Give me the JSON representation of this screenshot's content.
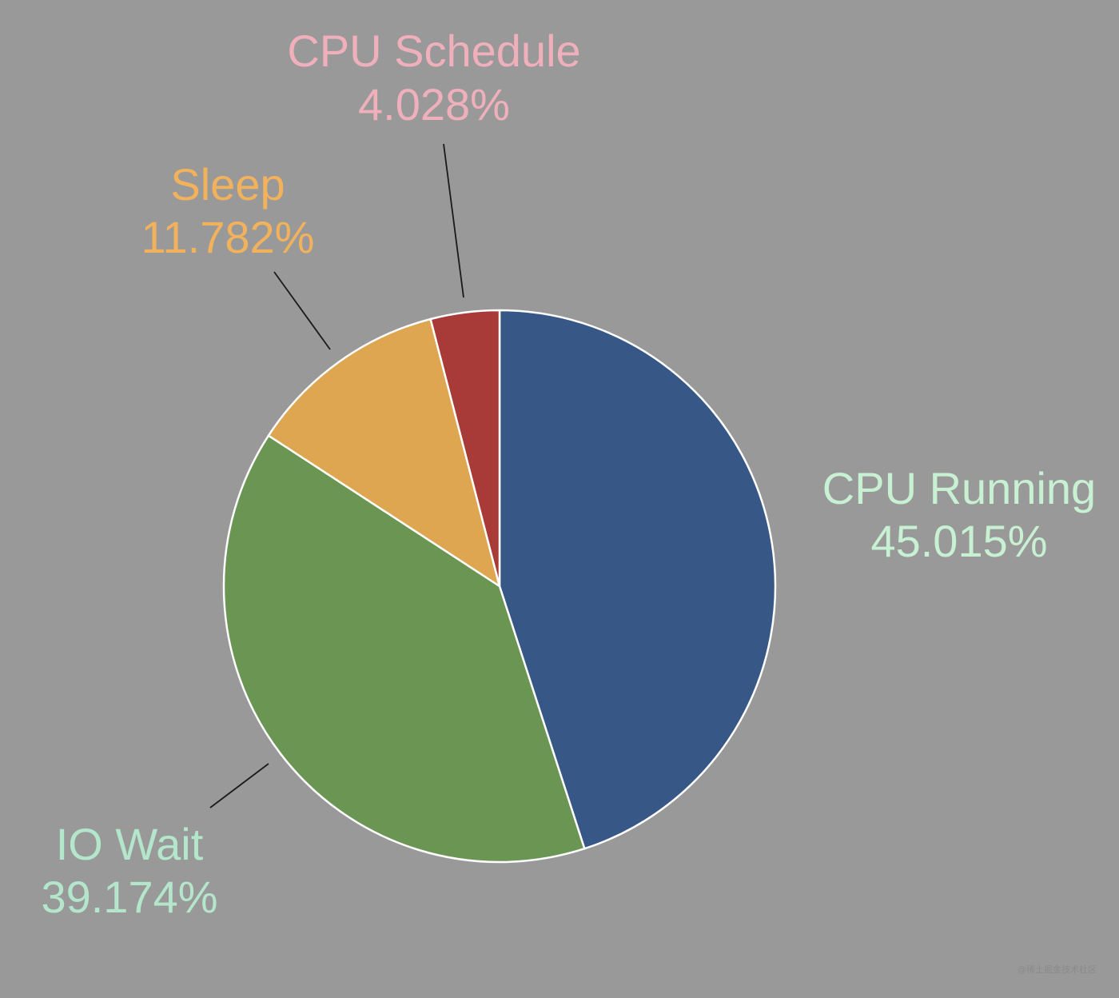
{
  "chart_data": {
    "type": "pie",
    "title": "",
    "start_angle": "12 o'clock",
    "direction": "clockwise",
    "slices": [
      {
        "label": "CPU Running",
        "value": 45.015,
        "value_label": "45.015%",
        "color": "#375787",
        "label_color": "#c8f0d2"
      },
      {
        "label": "IO Wait",
        "value": 39.174,
        "value_label": "39.174%",
        "color": "#6a9553",
        "label_color": "#b4e6cc"
      },
      {
        "label": "Sleep",
        "value": 11.782,
        "value_label": "11.782%",
        "color": "#dea651",
        "label_color": "#f2b25c"
      },
      {
        "label": "CPU Schedule",
        "value": 4.028,
        "value_label": "4.028%",
        "color": "#a83a38",
        "label_color": "#efb0bc"
      }
    ],
    "background": "#999999",
    "slice_border": "#ffffff"
  },
  "watermark": "@稀土掘金技术社区"
}
